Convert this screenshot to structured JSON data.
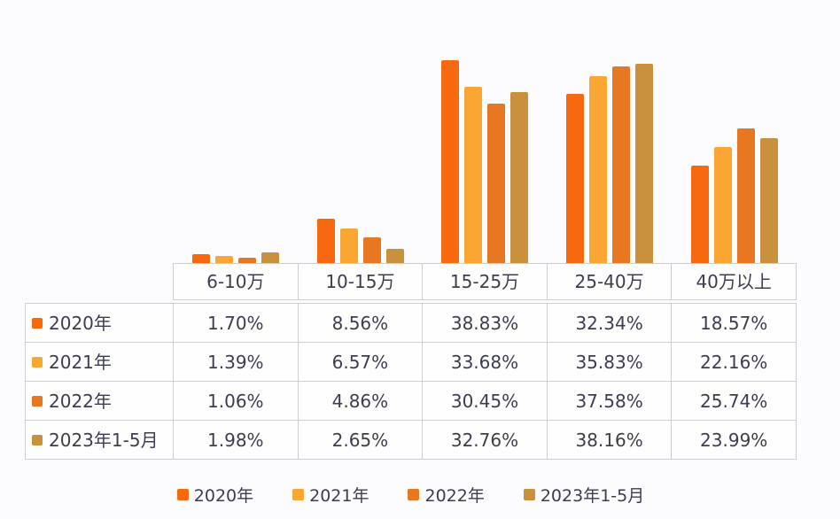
{
  "colors": {
    "background": "#fcfcfe",
    "text": "#3d3d52",
    "table_border": "#cdcdd3",
    "cell_background": "#fefeff",
    "series_colors": [
      "#f8690f",
      "#f9a633",
      "#e87722",
      "#c9913e"
    ]
  },
  "chart_data": {
    "type": "bar",
    "title": "",
    "xlabel": "",
    "ylabel": "",
    "value_unit": "percent",
    "ylim": [
      0,
      40
    ],
    "grid": false,
    "legend_position": "bottom",
    "categories": [
      "6-10万",
      "10-15万",
      "15-25万",
      "25-40万",
      "40万以上"
    ],
    "series": [
      {
        "name": "2020年",
        "color": "#f8690f",
        "values": [
          1.7,
          8.56,
          38.83,
          32.34,
          18.57
        ]
      },
      {
        "name": "2021年",
        "color": "#f9a633",
        "values": [
          1.39,
          6.57,
          33.68,
          35.83,
          22.16
        ]
      },
      {
        "name": "2022年",
        "color": "#e87722",
        "values": [
          1.06,
          4.86,
          30.45,
          37.58,
          25.74
        ]
      },
      {
        "name": "2023年1-5月",
        "color": "#c9913e",
        "values": [
          1.98,
          2.65,
          32.76,
          38.16,
          23.99
        ]
      }
    ]
  },
  "table": {
    "column_headers": [
      "6-10万",
      "10-15万",
      "15-25万",
      "25-40万",
      "40万以上"
    ],
    "rows": [
      {
        "label": "2020年",
        "cells": [
          "1.70%",
          "8.56%",
          "38.83%",
          "32.34%",
          "18.57%"
        ]
      },
      {
        "label": "2021年",
        "cells": [
          "1.39%",
          "6.57%",
          "33.68%",
          "35.83%",
          "22.16%"
        ]
      },
      {
        "label": "2022年",
        "cells": [
          "1.06%",
          "4.86%",
          "30.45%",
          "37.58%",
          "25.74%"
        ]
      },
      {
        "label": "2023年1-5月",
        "cells": [
          "1.98%",
          "2.65%",
          "32.76%",
          "38.16%",
          "23.99%"
        ]
      }
    ]
  },
  "legend": {
    "items": [
      "2020年",
      "2021年",
      "2022年",
      "2023年1-5月"
    ]
  }
}
